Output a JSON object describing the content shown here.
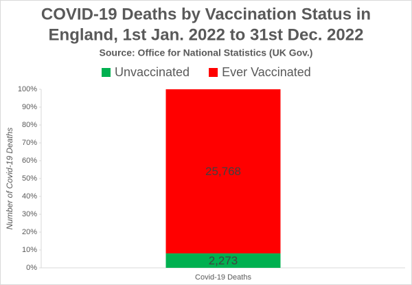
{
  "chart_data": {
    "type": "bar",
    "stacked": "percent",
    "title": [
      "COVID-19 Deaths by Vaccination Status in",
      "England, 1st Jan. 2022 to 31st Dec. 2022"
    ],
    "subtitle": "Source: Office for National Statistics (UK Gov.)",
    "y_label": "Number of Covid-19 Deaths",
    "categories": [
      "Covid-19 Deaths"
    ],
    "series": [
      {
        "name": "Unvaccinated",
        "color": "#00b050",
        "values": [
          2273
        ],
        "value_labels": [
          "2,273"
        ]
      },
      {
        "name": "Ever Vaccinated",
        "color": "#ff0000",
        "values": [
          25768
        ],
        "value_labels": [
          "25,768"
        ]
      }
    ],
    "ylim": [
      0,
      100
    ],
    "yticks": [
      {
        "value": 0,
        "label": "0%"
      },
      {
        "value": 10,
        "label": "10%"
      },
      {
        "value": 20,
        "label": "20%"
      },
      {
        "value": 30,
        "label": "30%"
      },
      {
        "value": 40,
        "label": "40%"
      },
      {
        "value": 50,
        "label": "50%"
      },
      {
        "value": 60,
        "label": "60%"
      },
      {
        "value": 70,
        "label": "70%"
      },
      {
        "value": 80,
        "label": "80%"
      },
      {
        "value": 90,
        "label": "90%"
      },
      {
        "value": 100,
        "label": "100%"
      }
    ],
    "grid": false,
    "legend": "top"
  }
}
